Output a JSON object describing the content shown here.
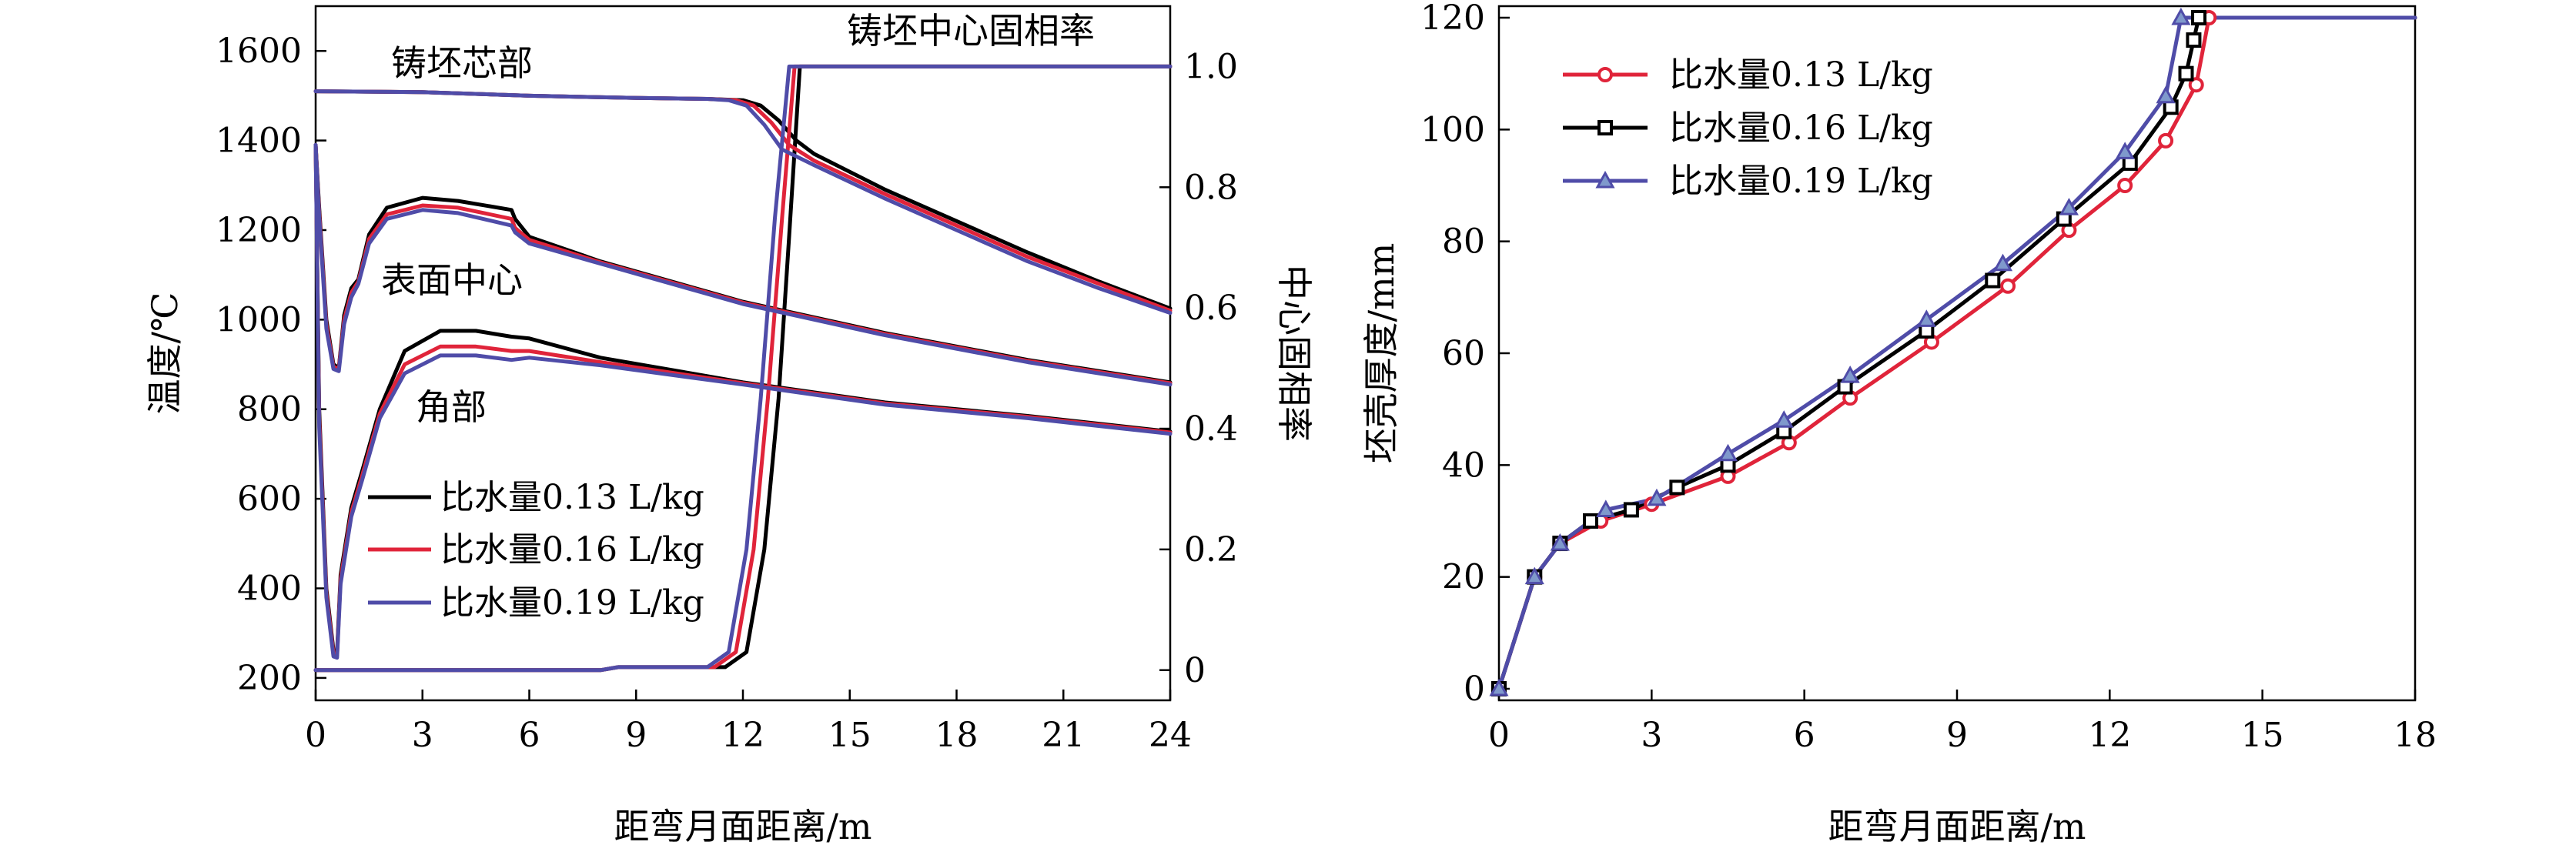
{
  "chart_data": [
    {
      "type": "line",
      "panel": "left",
      "xlabel": "距弯月面距离/m",
      "ylabel": "温度/℃",
      "y2label": "中心固相率",
      "xlim": [
        0,
        24
      ],
      "ylim": [
        150,
        1700
      ],
      "y2lim": [
        -0.05,
        1.1
      ],
      "xticks": [
        "0",
        "3",
        "6",
        "9",
        "12",
        "15",
        "18",
        "21",
        "24"
      ],
      "yticks": [
        "200",
        "400",
        "600",
        "800",
        "1000",
        "1200",
        "1400",
        "1600"
      ],
      "y2ticks": [
        "0",
        "0.2",
        "0.4",
        "0.6",
        "0.8",
        "1.0"
      ],
      "annotations": {
        "core": "铸坯芯部",
        "surface": "表面中心",
        "corner": "角部",
        "solid_fraction": "铸坯中心固相率"
      },
      "legend_position": "lower-left",
      "series": [
        {
          "name": "比水量0.13 L/kg",
          "color": "#000000",
          "core": [
            [
              0,
              1510
            ],
            [
              3,
              1508
            ],
            [
              6,
              1500
            ],
            [
              9,
              1495
            ],
            [
              11,
              1493
            ],
            [
              12,
              1490
            ],
            [
              12.5,
              1478
            ],
            [
              13,
              1445
            ],
            [
              13.5,
              1400
            ],
            [
              14,
              1370
            ],
            [
              16,
              1290
            ],
            [
              18,
              1220
            ],
            [
              20,
              1150
            ],
            [
              22,
              1085
            ],
            [
              24,
              1025
            ]
          ],
          "surface": [
            [
              0,
              1390
            ],
            [
              0.1,
              1250
            ],
            [
              0.3,
              1000
            ],
            [
              0.5,
              900
            ],
            [
              0.65,
              892
            ],
            [
              0.8,
              1010
            ],
            [
              1,
              1070
            ],
            [
              1.2,
              1090
            ],
            [
              1.5,
              1190
            ],
            [
              2,
              1250
            ],
            [
              3,
              1272
            ],
            [
              4,
              1265
            ],
            [
              5.5,
              1245
            ],
            [
              5.6,
              1225
            ],
            [
              6,
              1185
            ],
            [
              8,
              1130
            ],
            [
              12,
              1040
            ],
            [
              16,
              970
            ],
            [
              20,
              910
            ],
            [
              24,
              860
            ]
          ],
          "corner": [
            [
              0,
              1390
            ],
            [
              0.1,
              800
            ],
            [
              0.3,
              400
            ],
            [
              0.5,
              262
            ],
            [
              0.6,
              256
            ],
            [
              0.7,
              430
            ],
            [
              1,
              580
            ],
            [
              1.3,
              660
            ],
            [
              1.8,
              800
            ],
            [
              2.5,
              930
            ],
            [
              3.5,
              975
            ],
            [
              4.5,
              975
            ],
            [
              5.5,
              962
            ],
            [
              6,
              958
            ],
            [
              8,
              915
            ],
            [
              12,
              860
            ],
            [
              16,
              815
            ],
            [
              20,
              785
            ],
            [
              24,
              750
            ]
          ],
          "solid_fraction": [
            [
              0,
              0
            ],
            [
              8,
              0
            ],
            [
              8.5,
              0.005
            ],
            [
              11.5,
              0.005
            ],
            [
              12.1,
              0.03
            ],
            [
              12.6,
              0.2
            ],
            [
              13,
              0.45
            ],
            [
              13.3,
              0.72
            ],
            [
              13.6,
              1.0
            ],
            [
              24,
              1.0
            ]
          ]
        },
        {
          "name": "比水量0.16 L/kg",
          "color": "#e0243a",
          "core": [
            [
              0,
              1510
            ],
            [
              3,
              1508
            ],
            [
              6,
              1500
            ],
            [
              9,
              1495
            ],
            [
              11,
              1493
            ],
            [
              11.8,
              1490
            ],
            [
              12.3,
              1478
            ],
            [
              12.8,
              1440
            ],
            [
              13.3,
              1390
            ],
            [
              14,
              1355
            ],
            [
              16,
              1280
            ],
            [
              18,
              1210
            ],
            [
              20,
              1140
            ],
            [
              22,
              1080
            ],
            [
              24,
              1020
            ]
          ],
          "surface": [
            [
              0,
              1390
            ],
            [
              0.1,
              1240
            ],
            [
              0.3,
              990
            ],
            [
              0.5,
              895
            ],
            [
              0.65,
              890
            ],
            [
              0.8,
              1000
            ],
            [
              1,
              1060
            ],
            [
              1.2,
              1085
            ],
            [
              1.5,
              1180
            ],
            [
              2,
              1235
            ],
            [
              3,
              1255
            ],
            [
              4,
              1250
            ],
            [
              5.5,
              1225
            ],
            [
              5.6,
              1205
            ],
            [
              6,
              1178
            ],
            [
              8,
              1128
            ],
            [
              12,
              1038
            ],
            [
              16,
              968
            ],
            [
              20,
              908
            ],
            [
              24,
              858
            ]
          ],
          "corner": [
            [
              0,
              1390
            ],
            [
              0.1,
              780
            ],
            [
              0.3,
              390
            ],
            [
              0.5,
              255
            ],
            [
              0.6,
              250
            ],
            [
              0.7,
              420
            ],
            [
              1,
              570
            ],
            [
              1.3,
              650
            ],
            [
              1.8,
              790
            ],
            [
              2.5,
              900
            ],
            [
              3.5,
              940
            ],
            [
              4.5,
              940
            ],
            [
              5.5,
              930
            ],
            [
              6,
              930
            ],
            [
              8,
              905
            ],
            [
              12,
              858
            ],
            [
              16,
              813
            ],
            [
              20,
              783
            ],
            [
              24,
              748
            ]
          ],
          "solid_fraction": [
            [
              0,
              0
            ],
            [
              8,
              0
            ],
            [
              8.5,
              0.005
            ],
            [
              11.2,
              0.005
            ],
            [
              11.8,
              0.03
            ],
            [
              12.3,
              0.2
            ],
            [
              12.7,
              0.45
            ],
            [
              13.1,
              0.75
            ],
            [
              13.45,
              1.0
            ],
            [
              24,
              1.0
            ]
          ]
        },
        {
          "name": "比水量0.19 L/kg",
          "color": "#4f4ca8",
          "core": [
            [
              0,
              1510
            ],
            [
              3,
              1508
            ],
            [
              6,
              1500
            ],
            [
              9,
              1495
            ],
            [
              11,
              1493
            ],
            [
              11.6,
              1490
            ],
            [
              12.1,
              1478
            ],
            [
              12.6,
              1435
            ],
            [
              13.1,
              1380
            ],
            [
              14,
              1345
            ],
            [
              16,
              1270
            ],
            [
              18,
              1200
            ],
            [
              20,
              1130
            ],
            [
              22,
              1070
            ],
            [
              24,
              1015
            ]
          ],
          "surface": [
            [
              0,
              1390
            ],
            [
              0.1,
              1230
            ],
            [
              0.3,
              980
            ],
            [
              0.5,
              890
            ],
            [
              0.65,
              885
            ],
            [
              0.8,
              990
            ],
            [
              1,
              1050
            ],
            [
              1.2,
              1080
            ],
            [
              1.5,
              1170
            ],
            [
              2,
              1225
            ],
            [
              3,
              1245
            ],
            [
              4,
              1238
            ],
            [
              5.5,
              1210
            ],
            [
              5.6,
              1195
            ],
            [
              6,
              1170
            ],
            [
              8,
              1125
            ],
            [
              12,
              1035
            ],
            [
              16,
              965
            ],
            [
              20,
              905
            ],
            [
              24,
              855
            ]
          ],
          "corner": [
            [
              0,
              1390
            ],
            [
              0.1,
              760
            ],
            [
              0.3,
              380
            ],
            [
              0.5,
              248
            ],
            [
              0.6,
              245
            ],
            [
              0.7,
              410
            ],
            [
              1,
              560
            ],
            [
              1.3,
              640
            ],
            [
              1.8,
              780
            ],
            [
              2.5,
              880
            ],
            [
              3.5,
              920
            ],
            [
              4.5,
              920
            ],
            [
              5.5,
              910
            ],
            [
              6,
              915
            ],
            [
              8,
              898
            ],
            [
              12,
              855
            ],
            [
              16,
              810
            ],
            [
              20,
              780
            ],
            [
              24,
              745
            ]
          ],
          "solid_fraction": [
            [
              0,
              0
            ],
            [
              8,
              0
            ],
            [
              8.5,
              0.005
            ],
            [
              11,
              0.005
            ],
            [
              11.6,
              0.03
            ],
            [
              12.1,
              0.2
            ],
            [
              12.5,
              0.45
            ],
            [
              12.9,
              0.75
            ],
            [
              13.3,
              1.0
            ],
            [
              24,
              1.0
            ]
          ]
        }
      ]
    },
    {
      "type": "line",
      "panel": "right",
      "xlabel": "距弯月面距离/m",
      "ylabel": "坯壳厚度/mm",
      "xlim": [
        0,
        18
      ],
      "ylim": [
        0,
        120
      ],
      "xticks": [
        "0",
        "3",
        "6",
        "9",
        "12",
        "15",
        "18"
      ],
      "yticks": [
        "0",
        "20",
        "40",
        "60",
        "80",
        "100",
        "120"
      ],
      "legend_position": "top-left",
      "plateau_end": 18,
      "series": [
        {
          "name": "比水量0.13 L/kg",
          "color": "#e0243a",
          "marker": "circle",
          "points": [
            [
              0,
              0
            ],
            [
              0.7,
              20
            ],
            [
              1.2,
              26
            ],
            [
              2,
              30
            ],
            [
              3,
              33
            ],
            [
              4.5,
              38
            ],
            [
              5.7,
              44
            ],
            [
              6.9,
              52
            ],
            [
              8.5,
              62
            ],
            [
              10,
              72
            ],
            [
              11.2,
              82
            ],
            [
              12.3,
              90
            ],
            [
              13.1,
              98
            ],
            [
              13.7,
              108
            ],
            [
              13.95,
              120
            ]
          ]
        },
        {
          "name": "比水量0.16 L/kg",
          "color": "#000000",
          "marker": "square",
          "points": [
            [
              0,
              0
            ],
            [
              0.7,
              20
            ],
            [
              1.2,
              26
            ],
            [
              1.8,
              30
            ],
            [
              2.6,
              32
            ],
            [
              3.5,
              36
            ],
            [
              4.5,
              40
            ],
            [
              5.6,
              46
            ],
            [
              6.8,
              54
            ],
            [
              8.4,
              64
            ],
            [
              9.7,
              73
            ],
            [
              11.1,
              84
            ],
            [
              12.4,
              94
            ],
            [
              13.2,
              104
            ],
            [
              13.5,
              110
            ],
            [
              13.65,
              116
            ],
            [
              13.75,
              120
            ]
          ]
        },
        {
          "name": "比水量0.19 L/kg",
          "color": "#4f4ca8",
          "marker": "triangle",
          "points": [
            [
              0,
              0
            ],
            [
              0.7,
              20
            ],
            [
              1.2,
              26
            ],
            [
              2.1,
              32
            ],
            [
              3.1,
              34
            ],
            [
              4.5,
              42
            ],
            [
              5.6,
              48
            ],
            [
              6.9,
              56
            ],
            [
              8.4,
              66
            ],
            [
              9.9,
              76
            ],
            [
              11.2,
              86
            ],
            [
              12.3,
              96
            ],
            [
              13.1,
              106
            ],
            [
              13.4,
              120
            ]
          ]
        }
      ]
    }
  ]
}
